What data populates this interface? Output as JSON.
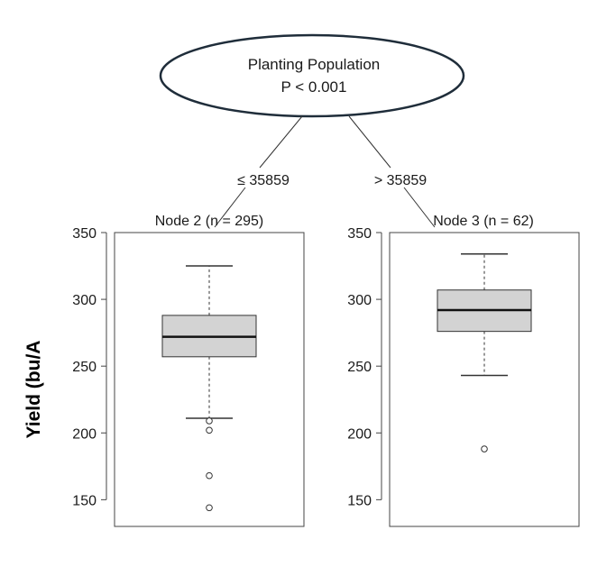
{
  "root": {
    "title": "Planting Population",
    "pvalue": "P < 0.001"
  },
  "edges": {
    "left": "≤ 35859",
    "right": "> 35859"
  },
  "ylabel": "Yield (bu/A",
  "chart_data": {
    "type": "boxplot",
    "ylabel": "Yield (bu/A",
    "ylim": [
      130,
      350
    ],
    "yticks": [
      150,
      200,
      250,
      300,
      350
    ],
    "box_fill": "#d3d3d3",
    "panels": [
      {
        "title": "Node 2 (n = 295)",
        "n": 295,
        "whisker_low": 211,
        "q1": 257,
        "median": 272,
        "q3": 288,
        "whisker_high": 325,
        "outliers": [
          209,
          202,
          168,
          144
        ]
      },
      {
        "title": "Node 3 (n = 62)",
        "n": 62,
        "whisker_low": 243,
        "q1": 276,
        "median": 292,
        "q3": 307,
        "whisker_high": 334,
        "outliers": [
          188
        ]
      }
    ]
  }
}
